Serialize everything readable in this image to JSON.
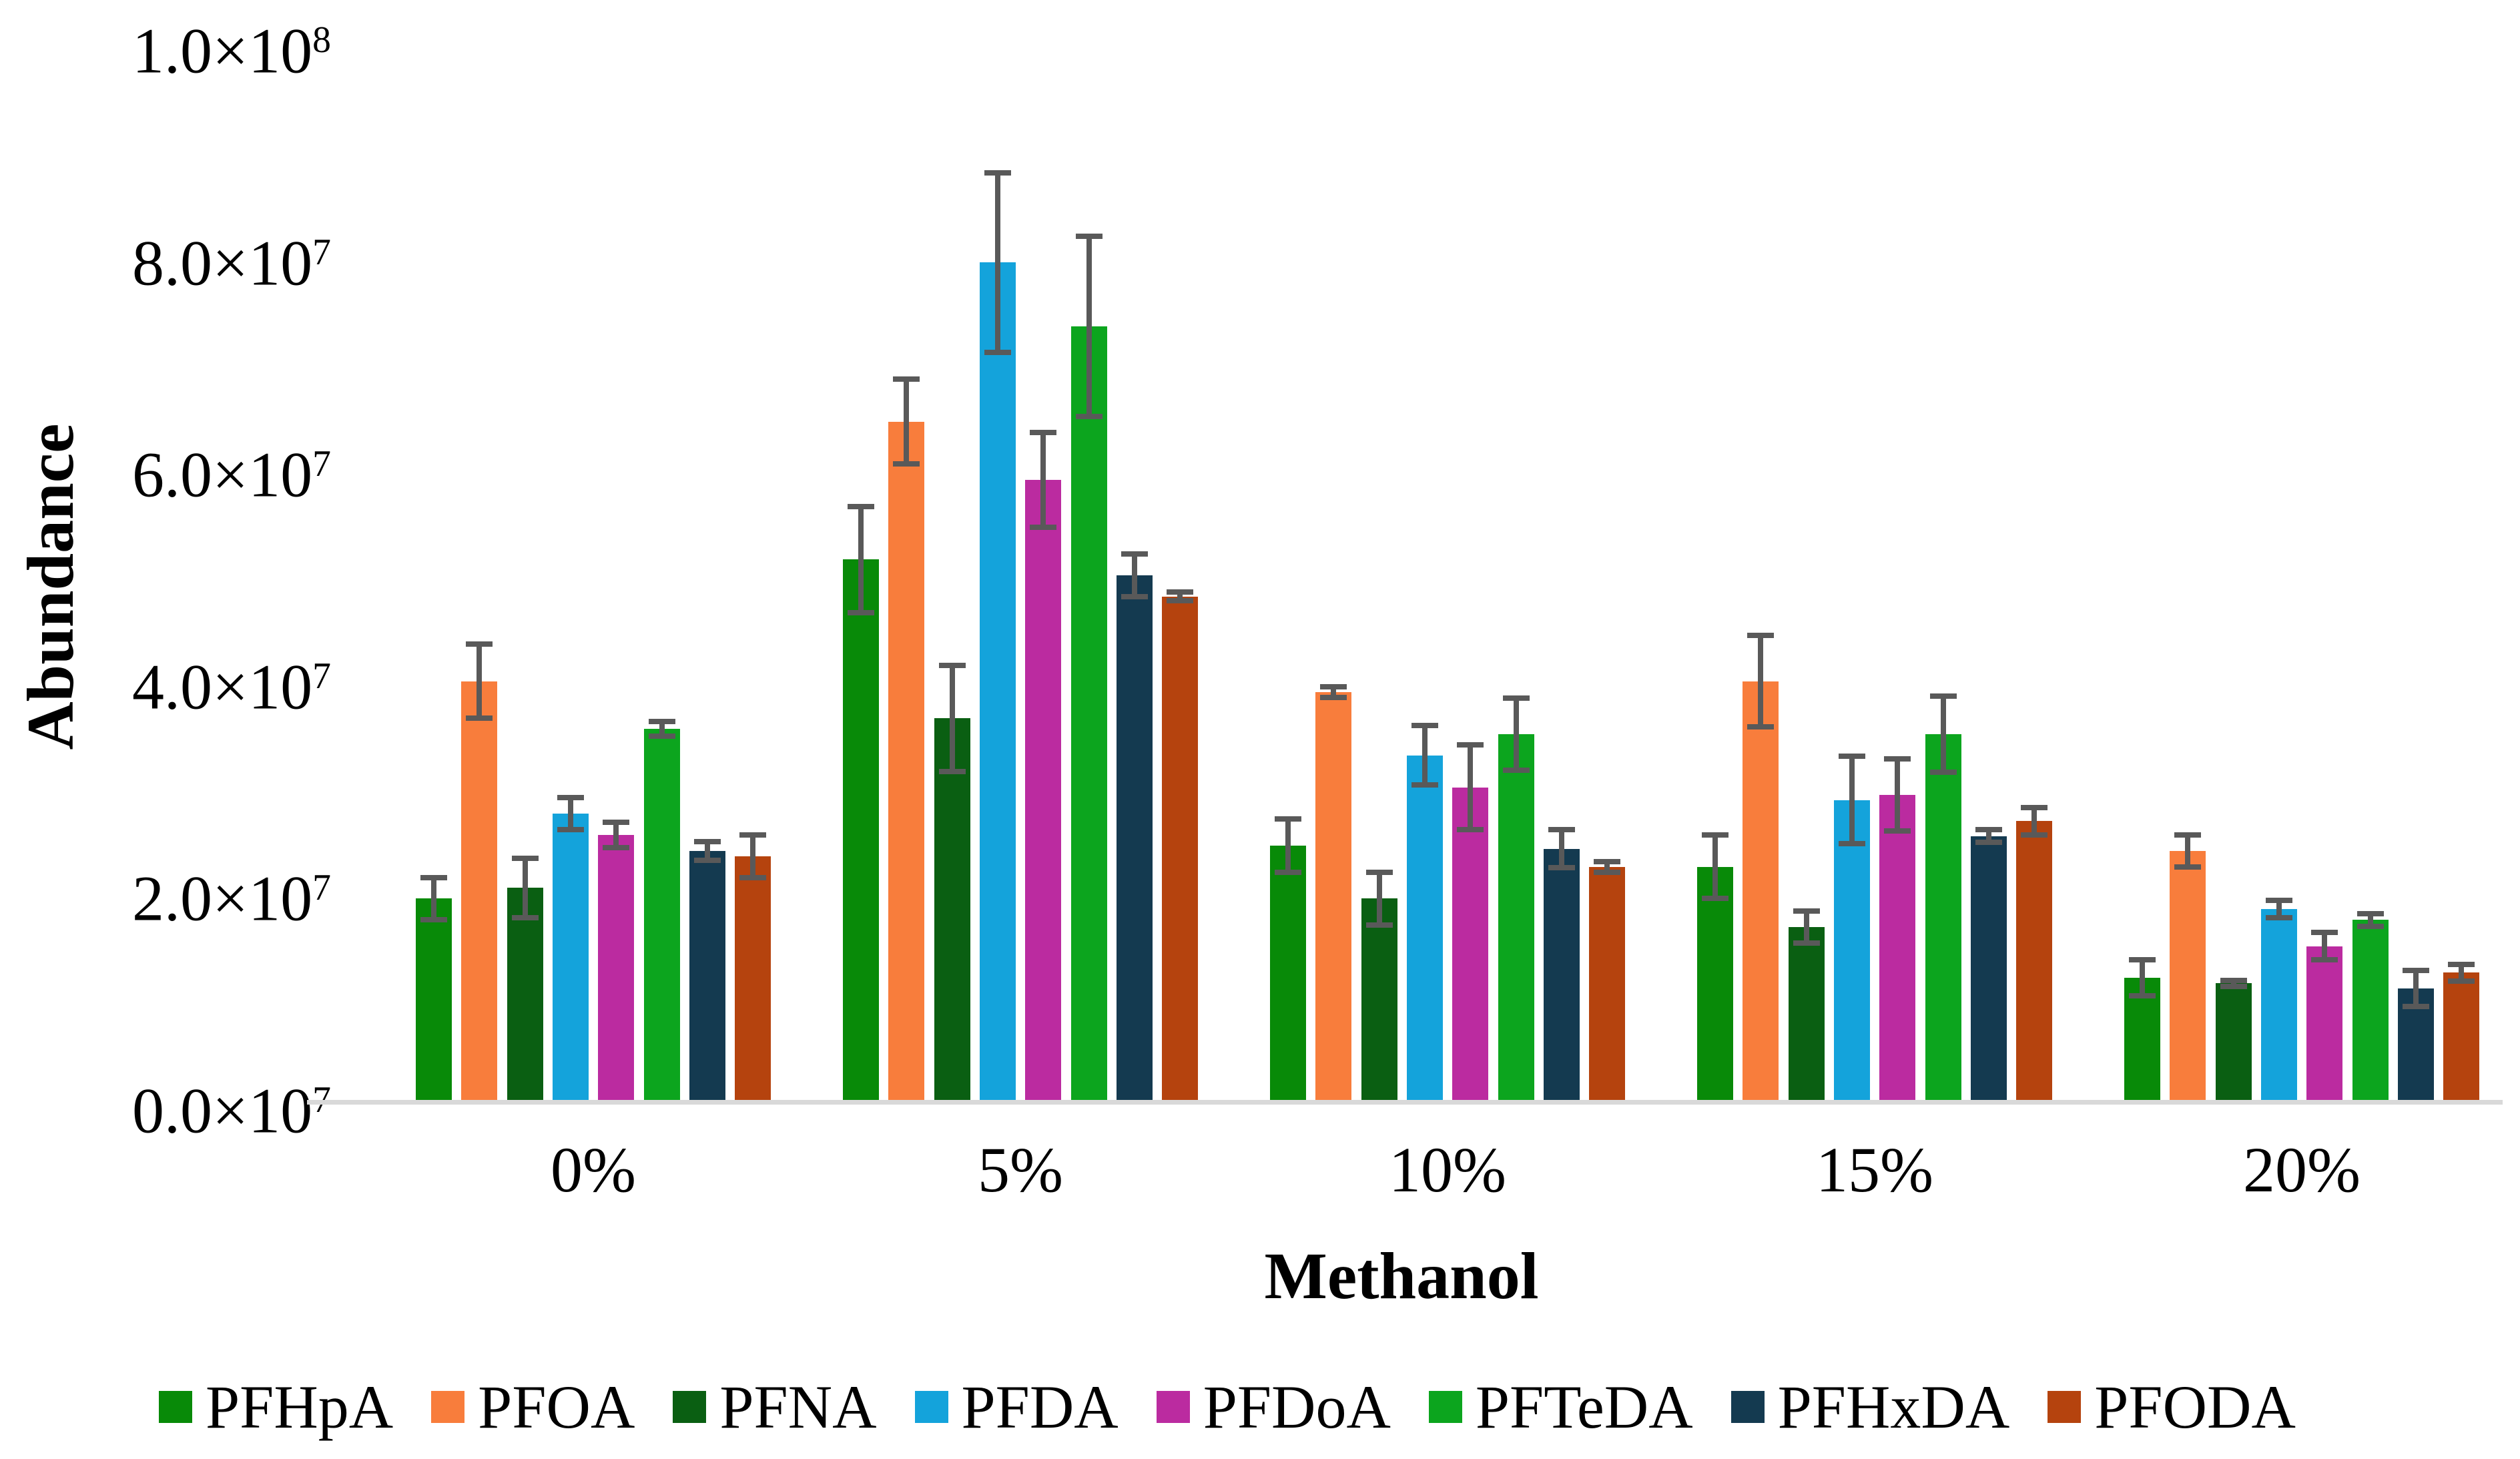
{
  "chart_data": {
    "type": "bar",
    "title": "",
    "xlabel": "Methanol",
    "ylabel": "Abundance",
    "grid": false,
    "legend_position": "bottom",
    "value_units": "abundance counts, values listed in multiples of 1e7",
    "ylim_e7": [
      0,
      10
    ],
    "y_tick_step_e7": 2,
    "y_ticks": [
      {
        "text": "1.0×10",
        "sup": "8",
        "value_e7": 10
      },
      {
        "text": "8.0×10",
        "sup": "7",
        "value_e7": 8
      },
      {
        "text": "6.0×10",
        "sup": "7",
        "value_e7": 6
      },
      {
        "text": "4.0×10",
        "sup": "7",
        "value_e7": 4
      },
      {
        "text": "2.0×10",
        "sup": "7",
        "value_e7": 2
      },
      {
        "text": "0.0×10",
        "sup": "7",
        "value_e7": 0
      }
    ],
    "categories": [
      "0%",
      "5%",
      "10%",
      "15%",
      "20%"
    ],
    "series": [
      {
        "name": "PFHpA",
        "color": "#088A08",
        "values_e7": [
          1.9,
          5.1,
          2.4,
          2.2,
          1.15
        ],
        "errors_e7": [
          0.2,
          0.5,
          0.25,
          0.3,
          0.17
        ]
      },
      {
        "name": "PFOA",
        "color": "#F87D3C",
        "values_e7": [
          3.95,
          6.4,
          3.85,
          3.95,
          2.35
        ],
        "errors_e7": [
          0.35,
          0.4,
          0.05,
          0.43,
          0.15
        ]
      },
      {
        "name": "PFNA",
        "color": "#0A5F12",
        "values_e7": [
          2.0,
          3.6,
          1.9,
          1.63,
          1.1
        ],
        "errors_e7": [
          0.28,
          0.5,
          0.25,
          0.15,
          0.03
        ]
      },
      {
        "name": "PFDA",
        "color": "#14A3DB",
        "values_e7": [
          2.7,
          7.9,
          3.25,
          2.83,
          1.8
        ],
        "errors_e7": [
          0.15,
          0.85,
          0.28,
          0.41,
          0.08
        ]
      },
      {
        "name": "PFDoA",
        "color": "#BB2BA0",
        "values_e7": [
          2.5,
          5.85,
          2.95,
          2.88,
          1.45
        ],
        "errors_e7": [
          0.12,
          0.45,
          0.4,
          0.34,
          0.13
        ]
      },
      {
        "name": "PFTeDA",
        "color": "#0CA51E",
        "values_e7": [
          3.5,
          7.3,
          3.45,
          3.45,
          1.7
        ],
        "errors_e7": [
          0.07,
          0.85,
          0.34,
          0.36,
          0.06
        ]
      },
      {
        "name": "PFHxDA",
        "color": "#143A50",
        "values_e7": [
          2.35,
          4.95,
          2.37,
          2.49,
          1.05
        ],
        "errors_e7": [
          0.09,
          0.2,
          0.18,
          0.06,
          0.17
        ]
      },
      {
        "name": "PFODA",
        "color": "#B5430E",
        "values_e7": [
          2.3,
          4.75,
          2.2,
          2.63,
          1.2
        ],
        "errors_e7": [
          0.2,
          0.04,
          0.05,
          0.13,
          0.08
        ]
      }
    ],
    "error_bar_color": "#595959",
    "axis_line_color": "#D9D9D9"
  }
}
